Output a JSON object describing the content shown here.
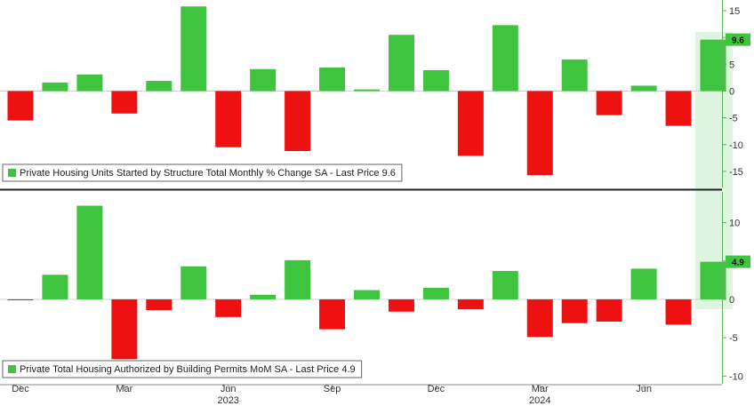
{
  "chart_data": [
    {
      "type": "bar",
      "title": "",
      "legend": "Private Housing Units Started by Structure Total Monthly % Change SA - Last Price 9.6",
      "legend_placement": "bottom-left",
      "last_price_label": "9.6",
      "ylim": [
        -18,
        17
      ],
      "yticks": [
        15,
        10,
        5,
        0,
        -5,
        -10,
        -15
      ],
      "colors": {
        "positive": "#3ec43e",
        "negative": "#ee1111",
        "marker": "#3ec43e"
      },
      "values": [
        -5.5,
        1.6,
        3.1,
        -4.2,
        1.9,
        15.8,
        -10.5,
        4.1,
        -11.2,
        4.4,
        0.3,
        10.5,
        3.9,
        -12.1,
        12.3,
        -15.7,
        5.9,
        -4.5,
        1.0,
        -6.5,
        9.6
      ]
    },
    {
      "type": "bar",
      "title": "",
      "legend": "Private Total Housing Authorized by Building Permits MoM SA - Last Price 4.9",
      "legend_placement": "bottom-left",
      "last_price_label": "4.9",
      "ylim": [
        -11,
        14
      ],
      "yticks": [
        10,
        5,
        0,
        -5,
        -10
      ],
      "colors": {
        "positive": "#3ec43e",
        "negative": "#ee1111",
        "marker": "#3ec43e"
      },
      "values": [
        -0.1,
        3.2,
        12.2,
        -7.8,
        -1.4,
        4.3,
        -2.3,
        0.6,
        5.1,
        -3.9,
        1.2,
        -1.6,
        1.5,
        -1.3,
        3.7,
        -4.9,
        -3.1,
        -2.9,
        4.0,
        -3.3,
        4.9
      ]
    }
  ],
  "x_axis": {
    "month_labels": [
      {
        "index": 0,
        "label": "Dec"
      },
      {
        "index": 3,
        "label": "Mar"
      },
      {
        "index": 6,
        "label": "Jun"
      },
      {
        "index": 9,
        "label": "Sep"
      },
      {
        "index": 12,
        "label": "Dec"
      },
      {
        "index": 15,
        "label": "Mar"
      },
      {
        "index": 18,
        "label": "Jun"
      }
    ],
    "year_labels": [
      {
        "index": 6,
        "label": "2023"
      },
      {
        "index": 15,
        "label": "2024"
      }
    ]
  }
}
